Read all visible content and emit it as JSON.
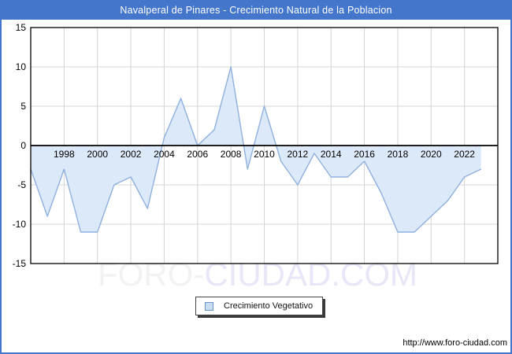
{
  "header": {
    "title": "Navalperal de Pinares - Crecimiento Natural de la Poblacion"
  },
  "chart_data": {
    "type": "area",
    "title": "Navalperal de Pinares - Crecimiento Natural de la Poblacion",
    "series": [
      {
        "name": "Crecimiento Vegetativo",
        "x": [
          1996,
          1997,
          1998,
          1999,
          2000,
          2001,
          2002,
          2003,
          2004,
          2005,
          2006,
          2007,
          2008,
          2009,
          2010,
          2011,
          2012,
          2013,
          2014,
          2015,
          2016,
          2017,
          2018,
          2019,
          2020,
          2021,
          2022,
          2023
        ],
        "values": [
          -3,
          -9,
          -3,
          -11,
          -11,
          -5,
          -4,
          -8,
          1,
          6,
          0,
          2,
          10,
          -3,
          5,
          -2,
          -5,
          -1,
          -4,
          -4,
          -2,
          -6,
          -11,
          -11,
          -9,
          -7,
          -4,
          -3
        ]
      }
    ],
    "baseline": 0,
    "xlim": [
      1996,
      2024
    ],
    "ylim": [
      -15,
      15
    ],
    "yticks": [
      15,
      10,
      5,
      0,
      -5,
      -10,
      -15
    ],
    "ygrid": [
      10,
      5,
      -5,
      -10
    ],
    "xticks": [
      1998,
      2000,
      2002,
      2004,
      2006,
      2008,
      2010,
      2012,
      2014,
      2016,
      2018,
      2020,
      2022
    ],
    "grid": true,
    "legend_position": "bottom-center",
    "colors": {
      "header": "#4477CC",
      "line": "#8FB0DF",
      "fill": "#DCE9F8",
      "grid": "#D4D4D4",
      "axis": "#000000"
    }
  },
  "legend": {
    "label": "Crecimiento Vegetativo"
  },
  "watermark": {
    "left": "FORO-",
    "right": "CIUDAD.COM"
  },
  "footer": {
    "url": "http://www.foro-ciudad.com"
  }
}
